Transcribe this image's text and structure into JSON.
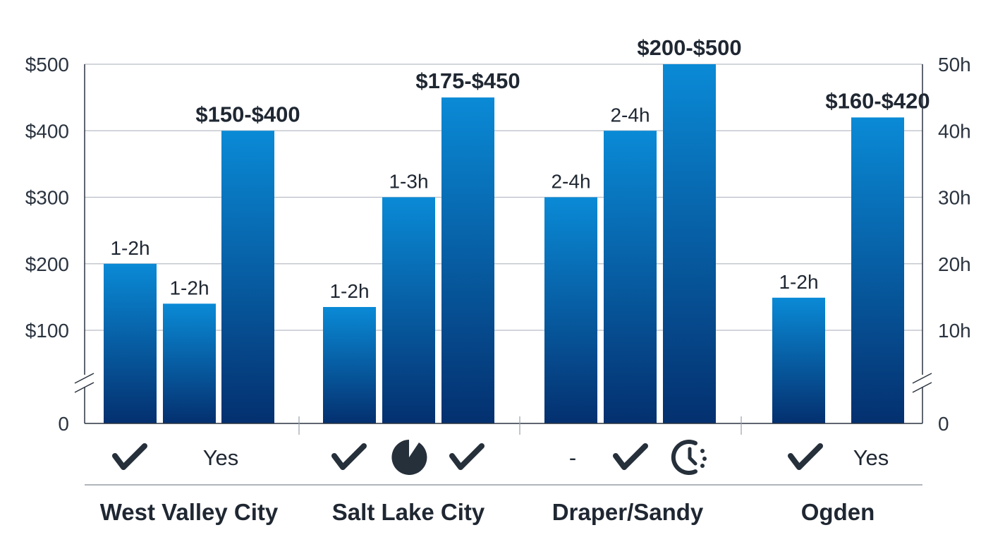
{
  "chart_data": {
    "type": "bar",
    "categories": [
      "West Valley City",
      "Salt Lake City",
      "Draper/Sandy",
      "Ogden"
    ],
    "left_axis": {
      "ticks": [
        "0",
        "$100",
        "$200",
        "$300",
        "$400",
        "$500"
      ],
      "values": [
        0,
        100,
        200,
        300,
        400,
        500
      ],
      "ylim": [
        0,
        500
      ],
      "axis_break": true
    },
    "right_axis": {
      "ticks": [
        "0",
        "10h",
        "20h",
        "30h",
        "40h",
        "50h"
      ],
      "values": [
        0,
        10,
        20,
        30,
        40,
        50
      ],
      "ylim": [
        0,
        50
      ],
      "axis_break": true
    },
    "grid": true,
    "groups": [
      {
        "category": "West Valley City",
        "bars": [
          {
            "value": 200,
            "label": "1-2h",
            "bold": false
          },
          {
            "value": 140,
            "label": "1-2h",
            "bold": false
          },
          {
            "value": 400,
            "label": "$150-$400",
            "bold": true
          }
        ],
        "indicators": [
          {
            "icon": "check-icon"
          },
          {
            "text": "Yes"
          }
        ]
      },
      {
        "category": "Salt Lake City",
        "bars": [
          {
            "value": 135,
            "label": "1-2h",
            "bold": false
          },
          {
            "value": 300,
            "label": "1-3h",
            "bold": false
          },
          {
            "value": 450,
            "label": "$175-$450",
            "bold": true
          }
        ],
        "indicators": [
          {
            "icon": "check-icon"
          },
          {
            "icon": "pie-icon"
          },
          {
            "icon": "check-icon"
          }
        ]
      },
      {
        "category": "Draper/Sandy",
        "bars": [
          {
            "value": 300,
            "label": "2-4h",
            "bold": false
          },
          {
            "value": 400,
            "label": "2-4h",
            "bold": false
          },
          {
            "value": 500,
            "label": "$200-$500",
            "bold": true
          }
        ],
        "indicators": [
          {
            "text": "-"
          },
          {
            "icon": "check-icon"
          },
          {
            "icon": "clock-icon"
          }
        ]
      },
      {
        "category": "Ogden",
        "bars": [
          {
            "value": 149,
            "label": "1-2h",
            "bold": false
          },
          {
            "value": 420,
            "label": "$160-$420",
            "bold": true
          }
        ],
        "indicators": [
          {
            "icon": "check-icon"
          },
          {
            "text": "Yes"
          }
        ]
      }
    ],
    "colors": {
      "bar_top": "#0a8ad6",
      "bar_bottom": "#04306f",
      "text": "#1f2732",
      "grid": "#b8bec6"
    }
  }
}
